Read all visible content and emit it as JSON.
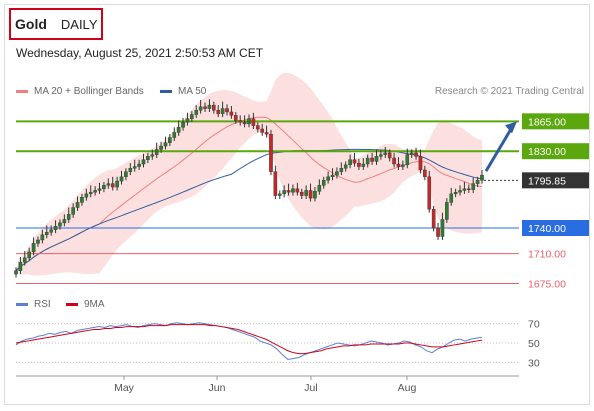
{
  "header": {
    "symbol": "Gold",
    "period": "DAILY",
    "timestamp": "Wednesday, August 25, 2021 2:50:53 AM CET",
    "credit": "Research © 2021 Trading Central"
  },
  "legend": {
    "price": [
      {
        "label": "MA 20 + Bollinger Bands",
        "color": "#f08080"
      },
      {
        "label": "MA 50",
        "color": "#2f5d9e"
      }
    ],
    "rsi": [
      {
        "label": "RSI",
        "color": "#5b7fd4"
      },
      {
        "label": "9MA",
        "color": "#d0021b"
      }
    ]
  },
  "chart_data": [
    {
      "type": "candlestick",
      "title": "Gold DAILY",
      "x_ticks": [
        "May",
        "Jun",
        "Jul",
        "Aug"
      ],
      "ylim": [
        1665,
        1890
      ],
      "close_series": [
        1690,
        1700,
        1705,
        1712,
        1722,
        1726,
        1732,
        1735,
        1738,
        1742,
        1746,
        1750,
        1756,
        1764,
        1770,
        1776,
        1780,
        1782,
        1784,
        1786,
        1790,
        1792,
        1788,
        1795,
        1800,
        1806,
        1810,
        1812,
        1815,
        1820,
        1824,
        1826,
        1832,
        1836,
        1840,
        1846,
        1852,
        1858,
        1864,
        1868,
        1873,
        1878,
        1882,
        1880,
        1884,
        1878,
        1874,
        1880,
        1876,
        1872,
        1866,
        1864,
        1862,
        1868,
        1860,
        1856,
        1852,
        1850,
        1806,
        1778,
        1780,
        1784,
        1782,
        1786,
        1782,
        1778,
        1784,
        1775,
        1783,
        1790,
        1796,
        1800,
        1802,
        1806,
        1810,
        1814,
        1820,
        1816,
        1812,
        1815,
        1822,
        1818,
        1824,
        1826,
        1828,
        1822,
        1815,
        1812,
        1814,
        1826,
        1828,
        1824,
        1808,
        1800,
        1762,
        1740,
        1730,
        1750,
        1770,
        1780,
        1782,
        1784,
        1786,
        1785,
        1792,
        1796,
        1802
      ],
      "levels": [
        {
          "value": 1865.0,
          "label": "1865.00",
          "color": "#5aa70e"
        },
        {
          "value": 1830.0,
          "label": "1830.00",
          "color": "#5aa70e"
        },
        {
          "value": 1795.85,
          "label": "1795.85",
          "color": "#333333"
        },
        {
          "value": 1740.0,
          "label": "1740.00",
          "color": "#2a6de0"
        },
        {
          "value": 1710.0,
          "label": "1710.00",
          "color": "#e8626a"
        },
        {
          "value": 1675.0,
          "label": "1675.00",
          "color": "#e8626a"
        }
      ]
    },
    {
      "type": "line",
      "title": "RSI",
      "ylim": [
        20,
        80
      ],
      "y_ticks": [
        70,
        50,
        30
      ],
      "series": [
        {
          "name": "RSI",
          "values": [
            48,
            52,
            54,
            55,
            57,
            58,
            60,
            59,
            61,
            62,
            60,
            63,
            64,
            65,
            66,
            67,
            66,
            68,
            67,
            68,
            69,
            67,
            66,
            68,
            69,
            70,
            69,
            68,
            70,
            71,
            70,
            69,
            70,
            71,
            70,
            69,
            68,
            67,
            66,
            64,
            62,
            60,
            58,
            56,
            52,
            50,
            48,
            44,
            38,
            33,
            34,
            35,
            38,
            40,
            42,
            44,
            46,
            48,
            50,
            49,
            48,
            47,
            48,
            50,
            52,
            51,
            50,
            48,
            49,
            50,
            52,
            51,
            48,
            46,
            42,
            40,
            44,
            46,
            50,
            53,
            54,
            52,
            54,
            55,
            56
          ]
        },
        {
          "name": "9MA",
          "values": [
            50,
            51,
            52,
            53,
            54,
            55,
            56,
            57,
            58,
            59,
            60,
            61,
            62,
            63,
            64,
            64,
            65,
            65,
            66,
            66,
            67,
            67,
            67,
            67,
            68,
            68,
            68,
            68,
            69,
            69,
            69,
            69,
            69,
            69,
            69,
            68,
            68,
            67,
            66,
            65,
            64,
            62,
            60,
            58,
            56,
            54,
            51,
            48,
            45,
            42,
            40,
            39,
            39,
            40,
            41,
            42,
            44,
            45,
            46,
            47,
            47,
            48,
            48,
            48,
            49,
            49,
            49,
            49,
            49,
            49,
            50,
            50,
            49,
            48,
            47,
            46,
            46,
            46,
            47,
            48,
            49,
            50,
            51,
            52,
            53
          ]
        }
      ]
    }
  ]
}
